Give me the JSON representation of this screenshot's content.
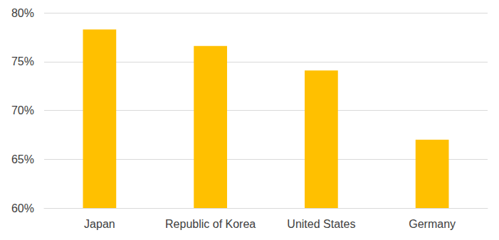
{
  "chart_data": {
    "type": "bar",
    "categories": [
      "Japan",
      "Republic of Korea",
      "United States",
      "Germany"
    ],
    "values": [
      78.3,
      76.6,
      74.1,
      67.0
    ],
    "color": "#ffc000",
    "ylim": [
      60,
      80
    ],
    "yticks": [
      {
        "value": 60,
        "label": "60%"
      },
      {
        "value": 65,
        "label": "65%"
      },
      {
        "value": 70,
        "label": "70%"
      },
      {
        "value": 75,
        "label": "75%"
      },
      {
        "value": 80,
        "label": "80%"
      }
    ],
    "grid": true
  }
}
